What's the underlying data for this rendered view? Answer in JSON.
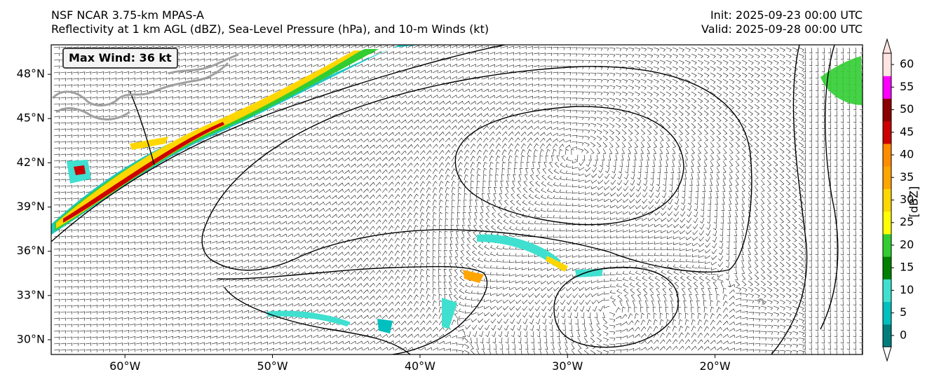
{
  "header": {
    "model_title": "NSF NCAR 3.75-km MPAS-A",
    "fields_title": "Reflectivity at 1 km AGL (dBZ), Sea-Level Pressure (hPa), and 10-m Winds (kt)",
    "init": "Init: 2025-09-23 00:00 UTC",
    "valid": "Valid: 2025-09-28 00:00 UTC"
  },
  "map": {
    "lon_range": [
      -65,
      -10
    ],
    "lat_range": [
      29,
      50
    ],
    "lat_ticks": [
      "30°N",
      "33°N",
      "36°N",
      "39°N",
      "42°N",
      "45°N",
      "48°N"
    ],
    "lat_values": [
      30,
      33,
      36,
      39,
      42,
      45,
      48
    ],
    "lon_ticks": [
      "60°W",
      "50°W",
      "40°W",
      "30°W",
      "20°W"
    ],
    "lon_values": [
      -60,
      -50,
      -40,
      -30,
      -20
    ],
    "max_wind": "Max Wind: 36 kt"
  },
  "colorbar": {
    "label": "[dBZ]",
    "ticks": [
      "0",
      "5",
      "10",
      "15",
      "20",
      "25",
      "30",
      "35",
      "40",
      "45",
      "50",
      "55",
      "60"
    ],
    "colors": [
      "#007d7d",
      "#00bfbf",
      "#40e0d0",
      "#008000",
      "#32cd32",
      "#ffff00",
      "#ffd700",
      "#ffa500",
      "#ff8c00",
      "#cc0000",
      "#8b0000",
      "#ff00ff",
      "#ffe4e1"
    ],
    "under_color": "#ffffff",
    "over_color": "#ffe4e1"
  }
}
